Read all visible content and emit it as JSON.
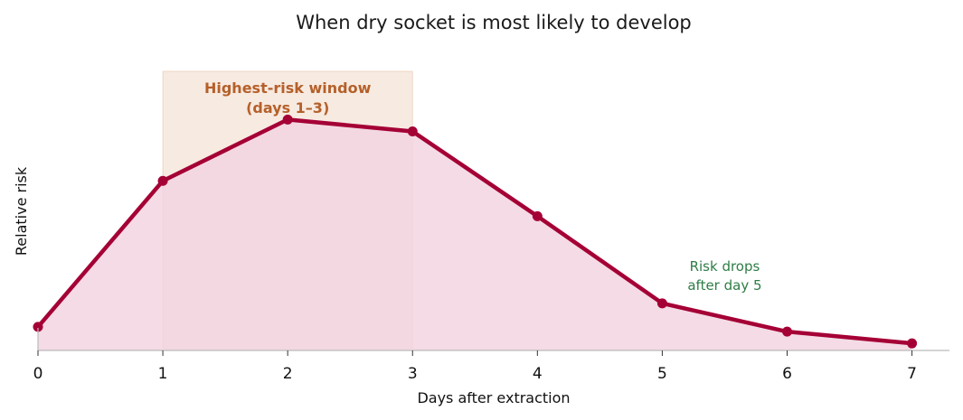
{
  "chart_data": {
    "type": "area",
    "title": "When dry socket is most likely to develop",
    "xlabel": "Days after extraction",
    "ylabel": "Relative risk",
    "x": [
      0,
      1,
      2,
      3,
      4,
      5,
      6,
      7
    ],
    "series": [
      {
        "values": [
          0.1,
          0.72,
          0.98,
          0.93,
          0.57,
          0.2,
          0.08,
          0.03
        ]
      }
    ],
    "xlim": [
      0,
      7.3
    ],
    "ylim": [
      0,
      1.25
    ],
    "xticks": [
      "0",
      "1",
      "2",
      "3",
      "4",
      "5",
      "6",
      "7"
    ],
    "y_ticks_visible": false,
    "grid": false,
    "legend": "none",
    "highlight_window": {
      "x_range": [
        1,
        3
      ],
      "label_line1": "Highest-risk window",
      "label_line2": "(days 1–3)"
    },
    "annotation": {
      "line1": "Risk drops",
      "line2": "after day 5"
    },
    "colors": {
      "line": "#a50036",
      "fill": "#f2d5e0",
      "window_fill": "#e8c3a8",
      "window_label": "#b5602a",
      "annotation": "#2f7d46",
      "axis": "#bbbbbb"
    }
  }
}
